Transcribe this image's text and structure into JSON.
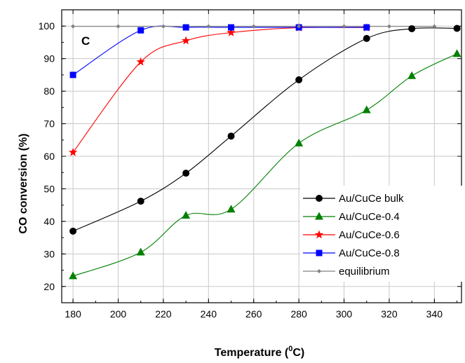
{
  "chart_data": {
    "type": "line",
    "panel_label": "C",
    "xlabel": {
      "prefix": "Temperature (",
      "superscript": "0",
      "suffix": "C)"
    },
    "ylabel": "CO conversion (%)",
    "xlim": [
      175,
      352
    ],
    "ylim": [
      15,
      105
    ],
    "x_ticks": [
      180,
      200,
      220,
      240,
      260,
      280,
      300,
      320,
      340
    ],
    "y_ticks": [
      20,
      30,
      40,
      50,
      60,
      70,
      80,
      90,
      100
    ],
    "grid": true,
    "legend_position": "bottom-right",
    "series": [
      {
        "name": "Au/CuCe bulk",
        "color": "#000000",
        "marker": "circle",
        "x": [
          180,
          210,
          230,
          250,
          280,
          310,
          330,
          350
        ],
        "y": [
          37,
          46.2,
          54.8,
          66.2,
          83.5,
          96.2,
          99.2,
          99.3
        ]
      },
      {
        "name": "Au/CuCe-0.4",
        "color": "#008000",
        "marker": "triangle",
        "x": [
          180,
          210,
          230,
          250,
          280,
          310,
          330,
          350
        ],
        "y": [
          23.2,
          30.5,
          41.8,
          43.7,
          64,
          74.2,
          84.7,
          91.5
        ]
      },
      {
        "name": "Au/CuCe-0.6",
        "color": "#ff0000",
        "marker": "star",
        "x": [
          180,
          210,
          230,
          250,
          280,
          310
        ],
        "y": [
          61.2,
          89,
          95.5,
          98,
          99.5,
          99.5
        ]
      },
      {
        "name": "Au/CuCe-0.8",
        "color": "#0000ff",
        "marker": "square",
        "x": [
          180,
          210,
          230,
          250,
          280,
          310
        ],
        "y": [
          85,
          98.7,
          99.6,
          99.6,
          99.6,
          99.6
        ]
      },
      {
        "name": "equilibrium",
        "color": "#808080",
        "marker": "diamond",
        "x": [
          180,
          200,
          220,
          240,
          260,
          280,
          300,
          320,
          340
        ],
        "y": [
          99.9,
          99.9,
          99.9,
          99.9,
          99.9,
          99.9,
          99.9,
          99.9,
          99.9
        ]
      }
    ]
  }
}
